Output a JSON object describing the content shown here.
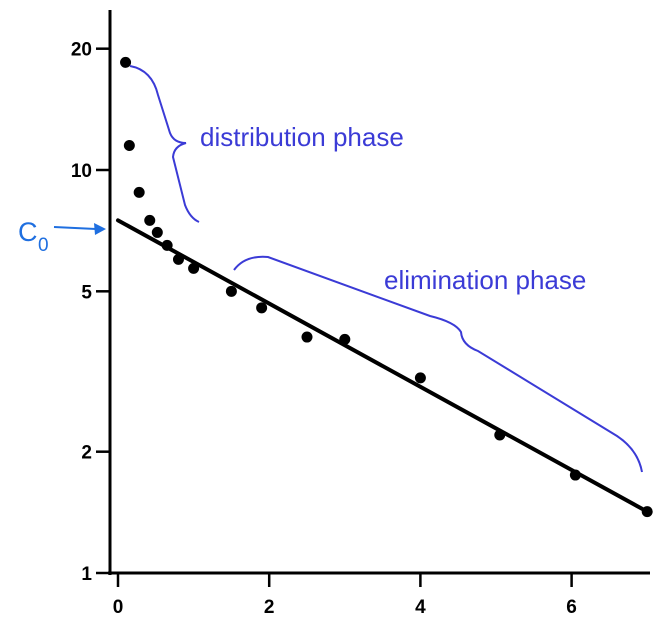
{
  "chart_data": {
    "type": "scatter",
    "y_scale": "log",
    "xlim": [
      -0.3,
      7
    ],
    "ylim": [
      1,
      23
    ],
    "x_ticks": [
      0,
      2,
      4,
      6
    ],
    "x_tick_labels": [
      "0",
      "2",
      "4",
      "6"
    ],
    "y_ticks": [
      1,
      2,
      5,
      10,
      20
    ],
    "y_tick_labels": [
      "1",
      "2",
      "5",
      "10",
      "20"
    ],
    "grid": false,
    "points": {
      "x": [
        0.1,
        0.15,
        0.28,
        0.42,
        0.52,
        0.65,
        0.8,
        1.0,
        1.5,
        1.9,
        2.5,
        3.0,
        4.0,
        5.05,
        6.05,
        7.0
      ],
      "y": [
        18.5,
        11.5,
        8.8,
        7.5,
        7.0,
        6.5,
        6.0,
        5.7,
        5.0,
        4.55,
        3.85,
        3.8,
        3.05,
        2.2,
        1.75,
        1.42
      ]
    },
    "regression_line": {
      "x": [
        0,
        7
      ],
      "y": [
        7.5,
        1.42
      ]
    },
    "annotations": {
      "distribution": "distribution phase",
      "elimination": "elimination phase",
      "c0_main": "C",
      "c0_sub": "0"
    },
    "colors": {
      "axis": "#000000",
      "points": "#000000",
      "line": "#000000",
      "annotation": "#3b3bd6",
      "c0": "#1f6fe0"
    }
  }
}
